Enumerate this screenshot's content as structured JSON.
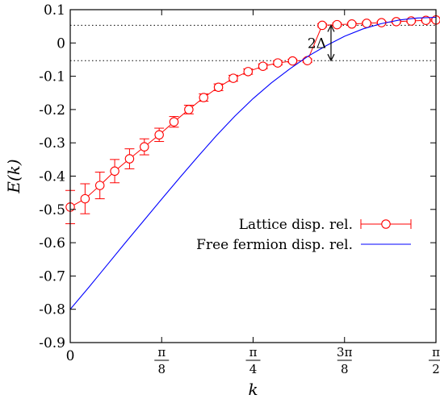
{
  "chart_data": {
    "type": "line",
    "title": "",
    "xlabel": "k",
    "ylabel": "E(k)",
    "xlim": [
      0,
      1.5708
    ],
    "ylim": [
      -0.9,
      0.1
    ],
    "y_ticks": [
      {
        "value": 0.1,
        "label": "0.1"
      },
      {
        "value": 0.0,
        "label": "0"
      },
      {
        "value": -0.1,
        "label": "-0.1"
      },
      {
        "value": -0.2,
        "label": "-0.2"
      },
      {
        "value": -0.3,
        "label": "-0.3"
      },
      {
        "value": -0.4,
        "label": "-0.4"
      },
      {
        "value": -0.5,
        "label": "-0.5"
      },
      {
        "value": -0.6,
        "label": "-0.6"
      },
      {
        "value": -0.7,
        "label": "-0.7"
      },
      {
        "value": -0.8,
        "label": "-0.8"
      },
      {
        "value": -0.9,
        "label": "-0.9"
      }
    ],
    "x_ticks": [
      {
        "value": 0,
        "label": "0"
      },
      {
        "value": 0.3927,
        "num": "π",
        "den": "8"
      },
      {
        "value": 0.7854,
        "num": "π",
        "den": "4"
      },
      {
        "value": 1.1781,
        "num": "3π",
        "den": "8"
      },
      {
        "value": 1.5708,
        "num": "π",
        "den": "2"
      }
    ],
    "legend_position": "lower-right",
    "series": [
      {
        "name": "Lattice disp. rel.",
        "style": "points-errorbars-line",
        "color": "#ff0000",
        "x": [
          0.0,
          0.0637,
          0.1273,
          0.191,
          0.2546,
          0.3183,
          0.382,
          0.4456,
          0.5093,
          0.573,
          0.6366,
          0.7003,
          0.7639,
          0.8276,
          0.8913,
          0.9549,
          1.0186,
          1.0822,
          1.1459,
          1.2095,
          1.2732,
          1.3369,
          1.4005,
          1.4642,
          1.5278,
          1.5708
        ],
        "y": [
          -0.493,
          -0.468,
          -0.428,
          -0.385,
          -0.348,
          -0.312,
          -0.276,
          -0.237,
          -0.2,
          -0.164,
          -0.133,
          -0.106,
          -0.086,
          -0.07,
          -0.06,
          -0.054,
          -0.053,
          0.053,
          0.055,
          0.057,
          0.059,
          0.061,
          0.064,
          0.066,
          0.068,
          0.069
        ],
        "err": [
          0.05,
          0.045,
          0.04,
          0.035,
          0.03,
          0.024,
          0.02,
          0.016,
          0.013,
          0.011,
          0.01,
          0.009,
          0.008,
          0.007,
          0.006,
          0.005,
          0.005,
          0.005,
          0.005,
          0.004,
          0.004,
          0.004,
          0.004,
          0.004,
          0.004,
          0.004
        ]
      },
      {
        "name": "Free fermion disp. rel.",
        "style": "line",
        "color": "#0000ff",
        "x": [
          0.0,
          0.0785,
          0.1571,
          0.2356,
          0.3142,
          0.3927,
          0.4712,
          0.5498,
          0.6283,
          0.7069,
          0.7854,
          0.8639,
          0.9425,
          1.021,
          1.0996,
          1.1781,
          1.2566,
          1.3352,
          1.4137,
          1.4923,
          1.5708
        ],
        "y": [
          -0.8,
          -0.735,
          -0.668,
          -0.601,
          -0.535,
          -0.469,
          -0.404,
          -0.34,
          -0.278,
          -0.22,
          -0.167,
          -0.12,
          -0.078,
          -0.04,
          -0.008,
          0.02,
          0.042,
          0.058,
          0.069,
          0.075,
          0.077
        ]
      }
    ],
    "reference_lines": [
      {
        "orientation": "horizontal",
        "y": 0.053,
        "style": "dotted"
      },
      {
        "orientation": "horizontal",
        "y": -0.053,
        "style": "dotted"
      }
    ],
    "annotations": [
      {
        "text": "2Δ",
        "x": 1.12,
        "y_from": -0.053,
        "y_to": 0.053
      }
    ]
  }
}
